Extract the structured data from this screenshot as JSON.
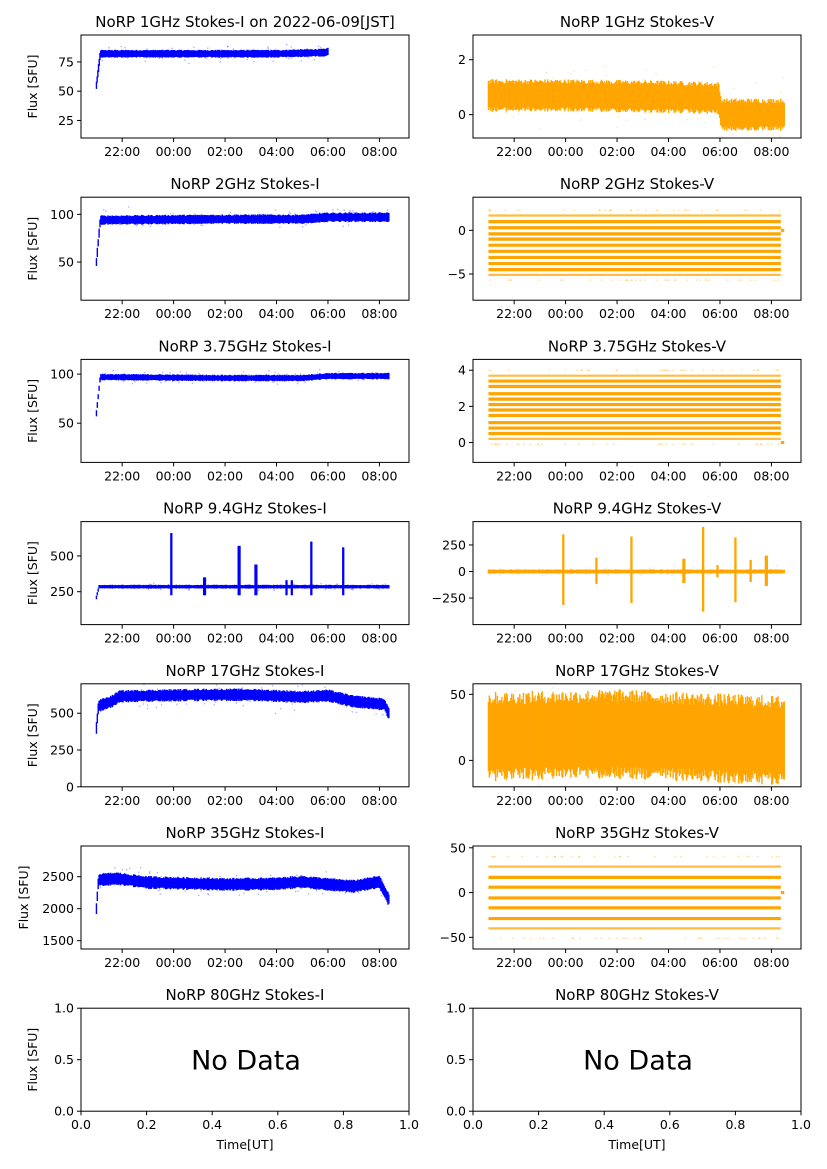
{
  "figure": {
    "date_title_suffix": " on 2022-06-09[JST]",
    "colors": {
      "stokes_i": "#0000ff",
      "stokes_v": "#ffa500",
      "axes": "#000000",
      "background": "#ffffff"
    },
    "xlabel": "Time[UT]",
    "ylabel_i": "Flux [SFU]"
  },
  "chart_data": [
    {
      "type": "scatter",
      "title": "NoRP 1GHz Stokes-I on 2022-06-09[JST]",
      "ylabel": "Flux [SFU]",
      "xlabel": "",
      "series": "stokes_i",
      "ylim": [
        10,
        98
      ],
      "yticks": [
        25,
        50,
        75
      ],
      "xlim": [
        "20:24",
        "09:09"
      ],
      "xticks": [
        "22:00",
        "00:00",
        "02:00",
        "04:00",
        "06:00",
        "08:00"
      ],
      "data_span": [
        "21:00",
        "06:00"
      ],
      "profile": [
        [
          21.0,
          55
        ],
        [
          21.15,
          82
        ],
        [
          24,
          82
        ],
        [
          28,
          82
        ],
        [
          29.9,
          83
        ],
        [
          30.0,
          84
        ]
      ],
      "noise": 2
    },
    {
      "type": "scatter",
      "title": "NoRP 1GHz Stokes-V",
      "ylabel": "",
      "xlabel": "",
      "series": "stokes_v",
      "ylim": [
        -0.85,
        2.9
      ],
      "yticks": [
        0,
        2
      ],
      "xlim": [
        "20:24",
        "09:09"
      ],
      "xticks": [
        "22:00",
        "00:00",
        "02:00",
        "04:00",
        "06:00",
        "08:00"
      ],
      "data_span": [
        "21:00",
        "08:30"
      ],
      "profile": [
        [
          21.0,
          0.7
        ],
        [
          24,
          0.7
        ],
        [
          28,
          0.65
        ],
        [
          29.95,
          0.6
        ],
        [
          30.05,
          0.0
        ],
        [
          32.5,
          0.0
        ]
      ],
      "noise": 0.35
    },
    {
      "type": "scatter",
      "title": "NoRP 2GHz Stokes-I",
      "ylabel": "Flux [SFU]",
      "xlabel": "",
      "series": "stokes_i",
      "ylim": [
        10,
        118
      ],
      "yticks": [
        50,
        100
      ],
      "xlim": [
        "20:24",
        "09:09"
      ],
      "xticks": [
        "22:00",
        "00:00",
        "02:00",
        "04:00",
        "06:00",
        "08:00"
      ],
      "data_span": [
        "21:00",
        "08:22"
      ],
      "profile": [
        [
          21.0,
          50
        ],
        [
          21.15,
          94
        ],
        [
          26,
          95
        ],
        [
          29,
          95
        ],
        [
          30,
          97
        ],
        [
          32.35,
          97
        ]
      ],
      "noise": 3
    },
    {
      "type": "scatter",
      "title": "NoRP 2GHz Stokes-V",
      "ylabel": "",
      "xlabel": "",
      "series": "stokes_v",
      "ylim": [
        -8,
        3.8
      ],
      "yticks": [
        -5,
        0
      ],
      "xlim": [
        "20:24",
        "09:09"
      ],
      "xticks": [
        "22:00",
        "00:00",
        "02:00",
        "04:00",
        "06:00",
        "08:00"
      ],
      "data_span": [
        "21:00",
        "08:30"
      ],
      "quantized_levels": [
        -5.1,
        -4.5,
        -3.8,
        -3.1,
        -2.4,
        -1.7,
        -1.0,
        -0.4,
        0.3,
        1.0,
        1.7
      ]
    },
    {
      "type": "scatter",
      "title": "NoRP 3.75GHz Stokes-I",
      "ylabel": "Flux [SFU]",
      "xlabel": "",
      "series": "stokes_i",
      "ylim": [
        10,
        115
      ],
      "yticks": [
        50,
        100
      ],
      "xlim": [
        "20:24",
        "09:09"
      ],
      "xticks": [
        "22:00",
        "00:00",
        "02:00",
        "04:00",
        "06:00",
        "08:00"
      ],
      "data_span": [
        "21:00",
        "08:22"
      ],
      "profile": [
        [
          21.0,
          60
        ],
        [
          21.15,
          97
        ],
        [
          26,
          96
        ],
        [
          29,
          96
        ],
        [
          30,
          98
        ],
        [
          32.35,
          98
        ]
      ],
      "noise": 2
    },
    {
      "type": "scatter",
      "title": "NoRP 3.75GHz Stokes-V",
      "ylabel": "",
      "xlabel": "",
      "series": "stokes_v",
      "ylim": [
        -1.1,
        4.6
      ],
      "yticks": [
        0,
        2,
        4
      ],
      "xlim": [
        "20:24",
        "09:09"
      ],
      "xticks": [
        "22:00",
        "00:00",
        "02:00",
        "04:00",
        "06:00",
        "08:00"
      ],
      "data_span": [
        "21:00",
        "08:30"
      ],
      "quantized_levels": [
        0.2,
        0.5,
        0.8,
        1.1,
        1.5,
        1.8,
        2.1,
        2.4,
        2.7,
        3.1,
        3.4,
        3.7
      ]
    },
    {
      "type": "scatter",
      "title": "NoRP 9.4GHz Stokes-I",
      "ylabel": "Flux [SFU]",
      "xlabel": "",
      "series": "stokes_i",
      "ylim": [
        20,
        740
      ],
      "yticks": [
        250,
        500
      ],
      "xlim": [
        "20:24",
        "09:09"
      ],
      "xticks": [
        "22:00",
        "00:00",
        "02:00",
        "04:00",
        "06:00",
        "08:00"
      ],
      "data_span": [
        "21:00",
        "08:22"
      ],
      "profile": [
        [
          21.0,
          210
        ],
        [
          21.1,
          285
        ],
        [
          32.35,
          285
        ]
      ],
      "noise": 8,
      "bursts": [
        [
          23.92,
          660
        ],
        [
          25.2,
          350
        ],
        [
          26.55,
          570
        ],
        [
          27.2,
          440
        ],
        [
          28.4,
          330
        ],
        [
          28.6,
          330
        ],
        [
          29.35,
          600
        ],
        [
          30.6,
          560
        ]
      ]
    },
    {
      "type": "scatter",
      "title": "NoRP 9.4GHz Stokes-V",
      "ylabel": "",
      "xlabel": "",
      "series": "stokes_v",
      "ylim": [
        -500,
        470
      ],
      "yticks": [
        -250,
        0,
        250
      ],
      "xlim": [
        "20:24",
        "09:09"
      ],
      "xticks": [
        "22:00",
        "00:00",
        "02:00",
        "04:00",
        "06:00",
        "08:00"
      ],
      "data_span": [
        "21:00",
        "08:30"
      ],
      "profile": [
        [
          21.0,
          0
        ],
        [
          32.5,
          0
        ]
      ],
      "noise": 12,
      "bursts": [
        [
          23.92,
          350
        ],
        [
          25.2,
          130
        ],
        [
          26.55,
          330
        ],
        [
          28.6,
          120
        ],
        [
          29.35,
          420
        ],
        [
          29.9,
          60
        ],
        [
          30.6,
          320
        ],
        [
          31.2,
          110
        ],
        [
          31.8,
          150
        ]
      ]
    },
    {
      "type": "scatter",
      "title": "NoRP 17GHz Stokes-I",
      "ylabel": "Flux [SFU]",
      "xlabel": "",
      "series": "stokes_i",
      "ylim": [
        0,
        700
      ],
      "yticks": [
        0,
        250,
        500
      ],
      "xlim": [
        "20:24",
        "09:09"
      ],
      "xticks": [
        "22:00",
        "00:00",
        "02:00",
        "04:00",
        "06:00",
        "08:00"
      ],
      "data_span": [
        "21:00",
        "08:22"
      ],
      "profile": [
        [
          21.0,
          400
        ],
        [
          21.08,
          550
        ],
        [
          21.6,
          580
        ],
        [
          21.9,
          615
        ],
        [
          25,
          625
        ],
        [
          27,
          625
        ],
        [
          29,
          610
        ],
        [
          30,
          620
        ],
        [
          31,
          580
        ],
        [
          32.2,
          560
        ],
        [
          32.35,
          500
        ]
      ],
      "noise": 25
    },
    {
      "type": "scatter",
      "title": "NoRP 17GHz Stokes-V",
      "ylabel": "",
      "xlabel": "",
      "series": "stokes_v",
      "ylim": [
        -20,
        58
      ],
      "yticks": [
        0,
        50
      ],
      "xlim": [
        "20:24",
        "09:09"
      ],
      "xticks": [
        "22:00",
        "00:00",
        "02:00",
        "04:00",
        "06:00",
        "08:00"
      ],
      "data_span": [
        "21:00",
        "08:30"
      ],
      "profile": [
        [
          21.0,
          18
        ],
        [
          26,
          20
        ],
        [
          32.35,
          15
        ]
      ],
      "noise": 20
    },
    {
      "type": "scatter",
      "title": "NoRP 35GHz Stokes-I",
      "ylabel": "Flux [SFU]",
      "xlabel": "",
      "series": "stokes_i",
      "ylim": [
        1370,
        2980
      ],
      "yticks": [
        1500,
        2000,
        2500
      ],
      "xlim": [
        "20:24",
        "09:09"
      ],
      "xticks": [
        "22:00",
        "00:00",
        "02:00",
        "04:00",
        "06:00",
        "08:00"
      ],
      "data_span": [
        "21:00",
        "08:22"
      ],
      "profile": [
        [
          21.0,
          2000
        ],
        [
          21.08,
          2450
        ],
        [
          21.8,
          2470
        ],
        [
          23,
          2410
        ],
        [
          26,
          2380
        ],
        [
          28,
          2390
        ],
        [
          29,
          2420
        ],
        [
          30,
          2380
        ],
        [
          31,
          2350
        ],
        [
          32,
          2420
        ],
        [
          32.35,
          2150
        ]
      ],
      "noise": 60
    },
    {
      "type": "scatter",
      "title": "NoRP 35GHz Stokes-V",
      "ylabel": "",
      "xlabel": "",
      "series": "stokes_v",
      "ylim": [
        -63,
        52
      ],
      "yticks": [
        -50,
        0,
        50
      ],
      "xlim": [
        "20:24",
        "09:09"
      ],
      "xticks": [
        "22:00",
        "00:00",
        "02:00",
        "04:00",
        "06:00",
        "08:00"
      ],
      "data_span": [
        "21:00",
        "08:30"
      ],
      "quantized_levels": [
        -40,
        -29,
        -17,
        -6,
        6,
        17,
        29
      ]
    },
    {
      "type": "scatter",
      "title": "NoRP 80GHz Stokes-I",
      "ylabel": "Flux [SFU]",
      "xlabel": "Time[UT]",
      "series": "stokes_i",
      "ylim": [
        0,
        1
      ],
      "yticks": [
        "0.0",
        "0.5",
        "1.0"
      ],
      "xlim": [
        0,
        1
      ],
      "xticks": [
        "0.0",
        "0.2",
        "0.4",
        "0.6",
        "0.8",
        "1.0"
      ],
      "annotation": "No Data"
    },
    {
      "type": "scatter",
      "title": "NoRP 80GHz Stokes-V",
      "ylabel": "",
      "xlabel": "Time[UT]",
      "series": "stokes_v",
      "ylim": [
        0,
        1
      ],
      "yticks": [
        "0.0",
        "0.5",
        "1.0"
      ],
      "xlim": [
        0,
        1
      ],
      "xticks": [
        "0.0",
        "0.2",
        "0.4",
        "0.6",
        "0.8",
        "1.0"
      ],
      "annotation": "No Data"
    }
  ]
}
